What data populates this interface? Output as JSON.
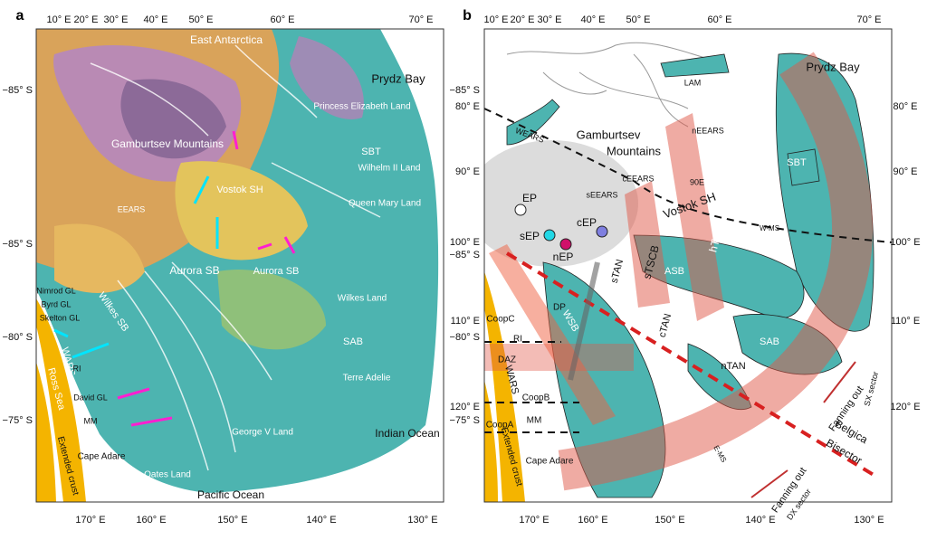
{
  "panels": [
    {
      "letter": "a",
      "top_axis": [
        "10° E",
        "20° E",
        "30° E",
        "40° E",
        "50° E",
        "60° E",
        "70° E"
      ],
      "bottom_axis": [
        "170° E",
        "160° E",
        "150° E",
        "140° E",
        "130° E"
      ],
      "left_axis": [
        "−85° S",
        "−85° S",
        "−80° S",
        "−75° S"
      ],
      "right_axis": [],
      "labels": [
        "East Antarctica",
        "Prydz Bay",
        "Gamburtsev Mountains",
        "Princess Elizabeth Land",
        "SBT",
        "Wilhelm II Land",
        "Queen Mary Land",
        "Vostok SH",
        "Aurora SB",
        "Aurora SB",
        "Wilkes SB",
        "Wilkes Land",
        "SAB",
        "Terre Adelie",
        "George V Land",
        "Indian Ocean",
        "Pacific Ocean",
        "Ross Sea",
        "WARS",
        "Nimrod GL",
        "Byrd GL",
        "Skelton GL",
        "RI",
        "David GL",
        "MM",
        "Extended crust",
        "Cape Adare",
        "Oates Land",
        "EEARS"
      ]
    },
    {
      "letter": "b",
      "top_axis": [
        "10° E",
        "20° E",
        "30° E",
        "40° E",
        "50° E",
        "60° E",
        "70° E"
      ],
      "bottom_axis": [
        "170° E",
        "160° E",
        "150° E",
        "140° E",
        "130° E"
      ],
      "left_axis": [
        "−85° S",
        "80° E",
        "90° E",
        "100° E",
        "−85° S",
        "110° E",
        "−80° S",
        "120° E",
        "−75° S"
      ],
      "right_axis": [
        "80° E",
        "90° E",
        "100° E",
        "110° E",
        "120° E"
      ],
      "labels": [
        "Prydz Bay",
        "LAM",
        "WEARS",
        "Gamburtsev",
        "Mountains",
        "nEEARS",
        "cEEARS",
        "sEEARS",
        "90E",
        "Vostok SH",
        "hTSCB",
        "sTSCB",
        "EP",
        "sEP",
        "cEP",
        "nEP",
        "sTAN",
        "cTAN",
        "nTAN",
        "SBT",
        "W-MS",
        "SAB",
        "ASB",
        "WSB",
        "E-MS",
        "CoopC",
        "CoopB",
        "CoopA",
        "MM",
        "DAZ",
        "DP",
        "RI",
        "WARS",
        "Extended crust",
        "Cape Adare",
        "Fanning out",
        "SX sector",
        "Fanning out",
        "DX sector",
        "Belgica",
        "Bisector"
      ]
    }
  ]
}
